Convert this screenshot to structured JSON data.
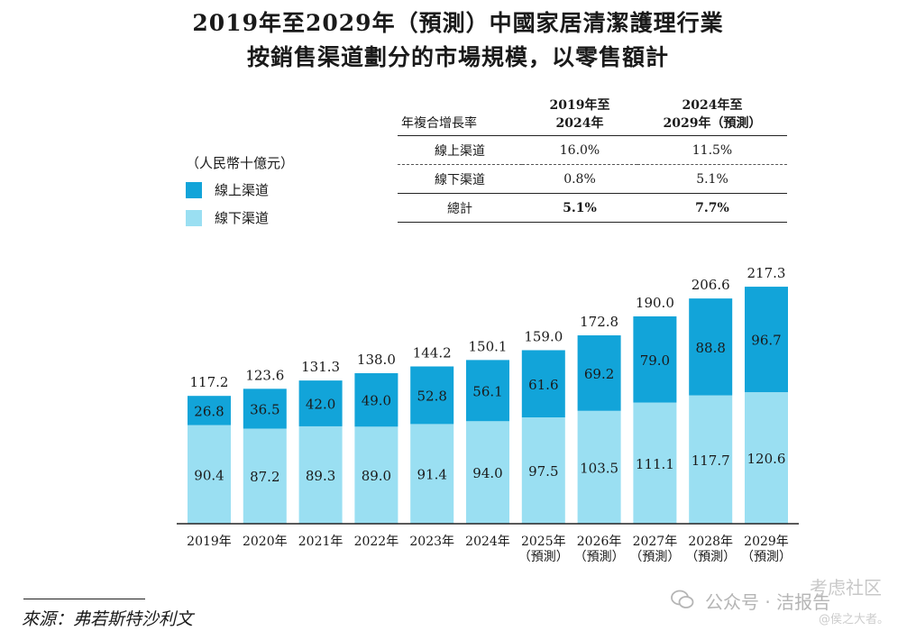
{
  "chart_data": {
    "type": "bar",
    "stacked": true,
    "title": "2019年至2029年（預測）中國家居清潔護理行業",
    "subtitle": "按銷售渠道劃分的市場規模，以零售額計",
    "unit": "（人民幣十億元）",
    "categories": [
      "2019年",
      "2020年",
      "2021年",
      "2022年",
      "2023年",
      "2024年",
      "2025年",
      "2026年",
      "2027年",
      "2028年",
      "2029年"
    ],
    "category_notes": [
      "",
      "",
      "",
      "",
      "",
      "",
      "（預測）",
      "（預測）",
      "（預測）",
      "（預測）",
      "（預測）"
    ],
    "series": [
      {
        "name": "線下渠道",
        "color": "#9adff2",
        "values": [
          90.4,
          87.2,
          89.3,
          89.0,
          91.4,
          94.0,
          97.5,
          103.5,
          111.1,
          117.7,
          120.6
        ]
      },
      {
        "name": "線上渠道",
        "color": "#12a4d9",
        "values": [
          26.8,
          36.5,
          42.0,
          49.0,
          52.8,
          56.1,
          61.6,
          69.2,
          79.0,
          88.8,
          96.7
        ]
      }
    ],
    "totals": [
      117.2,
      123.6,
      131.3,
      138.0,
      144.2,
      150.1,
      159.0,
      172.8,
      190.0,
      206.6,
      217.3
    ],
    "ylim": [
      0,
      230
    ],
    "legend_position": "left"
  },
  "cagr_table": {
    "header_label": "年複合增長率",
    "col1": {
      "line1": "2019年至",
      "line2": "2024年"
    },
    "col2": {
      "line1": "2024年至",
      "line2": "2029年（預測）"
    },
    "rows": [
      {
        "label": "線上渠道",
        "v1": "16.0%",
        "v2": "11.5%"
      },
      {
        "label": "線下渠道",
        "v1": "0.8%",
        "v2": "5.1%"
      },
      {
        "label": "總計",
        "v1": "5.1%",
        "v2": "7.7%"
      }
    ]
  },
  "legend": {
    "online": "線上渠道",
    "offline": "線下渠道"
  },
  "source": "來源：弗若斯特沙利文",
  "watermark": {
    "wechat": "公众号 · 洁报告",
    "community": "考虑社区",
    "credit": "@侯之大者。"
  }
}
